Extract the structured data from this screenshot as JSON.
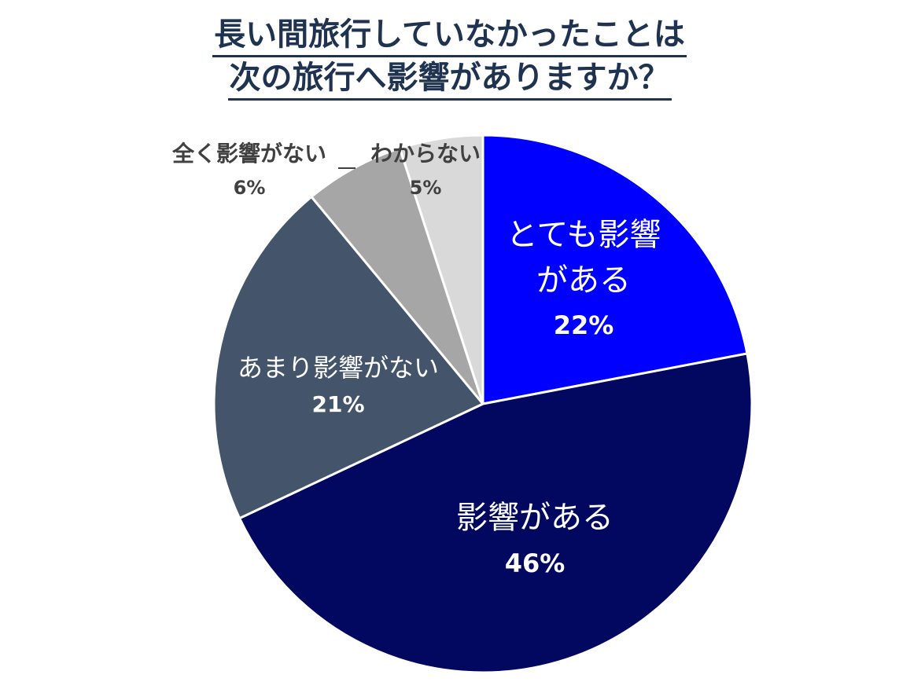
{
  "title": {
    "line1": "長い間旅行していなかったことは",
    "line2": "次の旅行へ影響がありますか？"
  },
  "colors": {
    "line_background": "#ffffff",
    "title_text": "#1f3350",
    "inside_label": "#ffffff",
    "outside_label": "#404040"
  },
  "chart_data": {
    "type": "pie",
    "start": "12 o'clock",
    "direction": "clockwise",
    "slices": [
      {
        "label_lines": [
          "とても影響",
          "がある"
        ],
        "value": 22,
        "percent": "22%",
        "color": "#0000ff",
        "label_position": "inside"
      },
      {
        "label_lines": [
          "影響がある"
        ],
        "value": 46,
        "percent": "46%",
        "color": "#020860",
        "label_position": "inside"
      },
      {
        "label_lines": [
          "あまり影響がない"
        ],
        "value": 21,
        "percent": "21%",
        "color": "#44546a",
        "label_position": "inside"
      },
      {
        "label_lines": [
          "全く影響がない"
        ],
        "value": 6,
        "percent": "6%",
        "color": "#a6a6a6",
        "label_position": "outside"
      },
      {
        "label_lines": [
          "わからない"
        ],
        "value": 5,
        "percent": "5%",
        "color": "#d9d9d9",
        "label_position": "outside"
      }
    ]
  }
}
